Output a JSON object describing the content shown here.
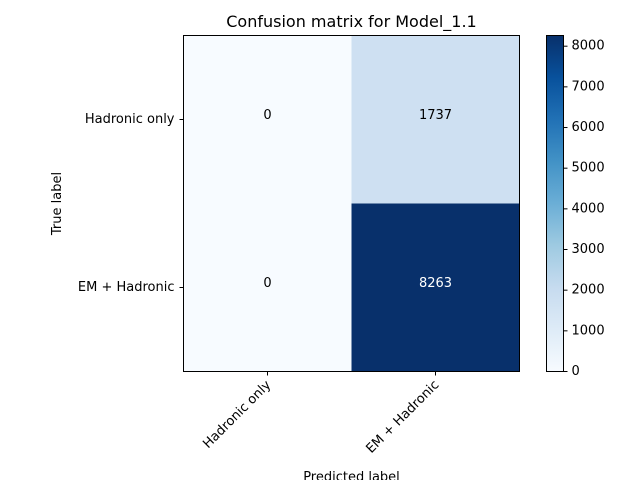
{
  "chart_data": {
    "type": "heatmap",
    "title": "Confusion matrix for Model_1.1",
    "xlabel": "Predicted label",
    "ylabel": "True label",
    "x_categories": [
      "Hadronic only",
      "EM + Hadronic"
    ],
    "y_categories": [
      "Hadronic only",
      "EM + Hadronic"
    ],
    "values": [
      [
        0,
        1737
      ],
      [
        0,
        8263
      ]
    ],
    "colormap": "Blues",
    "colorbar": {
      "min": 0,
      "max": 8263,
      "ticks": [
        0,
        1000,
        2000,
        3000,
        4000,
        5000,
        6000,
        7000,
        8000
      ],
      "tick_labels": [
        "0",
        "1000",
        "2000",
        "3000",
        "4000",
        "5000",
        "6000",
        "7000",
        "8000"
      ]
    },
    "text_colors": {
      "dark": "#000000",
      "light": "#ffffff"
    },
    "grid": false,
    "legend": "colorbar-right"
  }
}
